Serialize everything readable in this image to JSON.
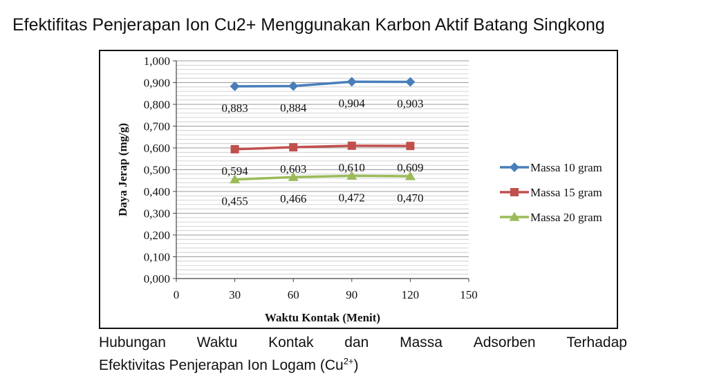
{
  "page_title": "Efektifitas Penjerapan Ion Cu2+ Menggunakan Karbon Aktif Batang Singkong",
  "caption": {
    "line1_words": [
      "Hubungan",
      "Waktu",
      "Kontak",
      "dan",
      "Massa",
      "Adsorben",
      "Terhadap"
    ],
    "line2_prefix": "Efektivitas Penjerapan Ion Logam (Cu",
    "line2_sup": "2+",
    "line2_suffix": ")"
  },
  "chart_data": {
    "type": "line",
    "xlabel": "Waktu Kontak (Menit)",
    "ylabel": "Daya Jerap (mg/g)",
    "xlim": [
      0,
      150
    ],
    "ylim": [
      0,
      1
    ],
    "x_ticks": [
      "0",
      "30",
      "60",
      "90",
      "120",
      "150"
    ],
    "y_ticks": [
      "0,000",
      "0,100",
      "0,200",
      "0,300",
      "0,400",
      "0,500",
      "0,600",
      "0,700",
      "0,800",
      "0,900",
      "1,000"
    ],
    "grid": true,
    "legend_position": "right",
    "x": [
      30,
      60,
      90,
      120
    ],
    "series": [
      {
        "name": "Massa 10 gram",
        "values": [
          0.883,
          0.884,
          0.904,
          0.903
        ],
        "labels": [
          "0,883",
          "0,884",
          "0,904",
          "0,903"
        ],
        "color": "#4a7ebb",
        "marker": "diamond"
      },
      {
        "name": "Massa 15 gram",
        "values": [
          0.594,
          0.603,
          0.61,
          0.609
        ],
        "labels": [
          "0,594",
          "0,603",
          "0,610",
          "0,609"
        ],
        "color": "#c0504d",
        "marker": "square"
      },
      {
        "name": "Massa 20 gram",
        "values": [
          0.455,
          0.466,
          0.472,
          0.47
        ],
        "labels": [
          "0,455",
          "0,466",
          "0,472",
          "0,470"
        ],
        "color": "#9bbb59",
        "marker": "triangle"
      }
    ]
  }
}
